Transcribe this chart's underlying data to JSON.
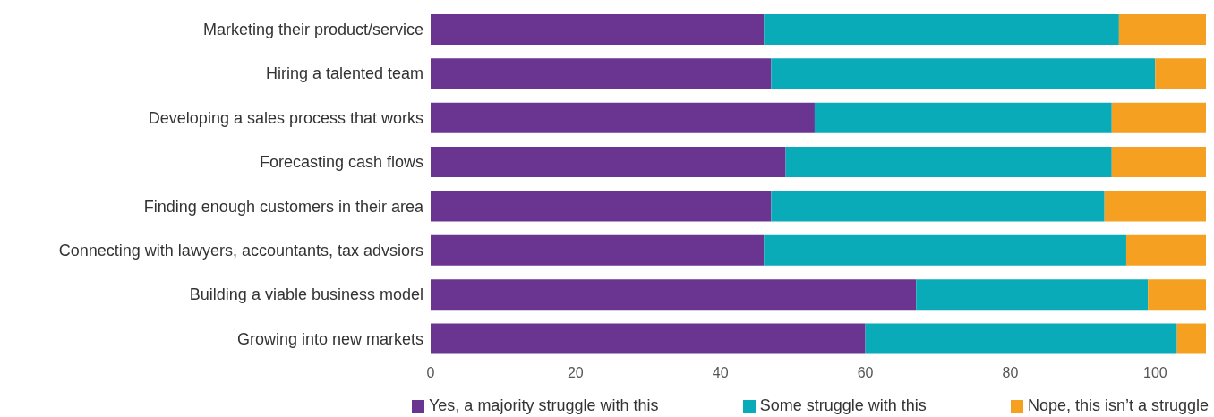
{
  "chart_data": {
    "type": "bar",
    "orientation": "horizontal",
    "stacked": true,
    "categories": [
      "Marketing their product/service",
      "Hiring a talented team",
      "Developing a sales process that works",
      "Forecasting cash flows",
      "Finding enough customers in their area",
      "Connecting with lawyers, accountants, tax advsiors",
      "Building a viable business model",
      "Growing into new markets"
    ],
    "series": [
      {
        "name": "Yes, a majority struggle with this",
        "color": "#6a3590",
        "values": [
          46,
          47,
          53,
          49,
          47,
          46,
          67,
          60
        ]
      },
      {
        "name": "Some struggle with this",
        "color": "#0aabb8",
        "values": [
          49,
          53,
          41,
          45,
          46,
          50,
          32,
          43
        ]
      },
      {
        "name": "Nope, this isn’t a struggle",
        "color": "#f5a020",
        "values": [
          12,
          7,
          13,
          13,
          14,
          11,
          8,
          4
        ]
      }
    ],
    "xlim": [
      0,
      107
    ],
    "xticks": [
      0,
      20,
      40,
      60,
      80,
      100
    ],
    "grid": false,
    "legend": "bottom"
  }
}
